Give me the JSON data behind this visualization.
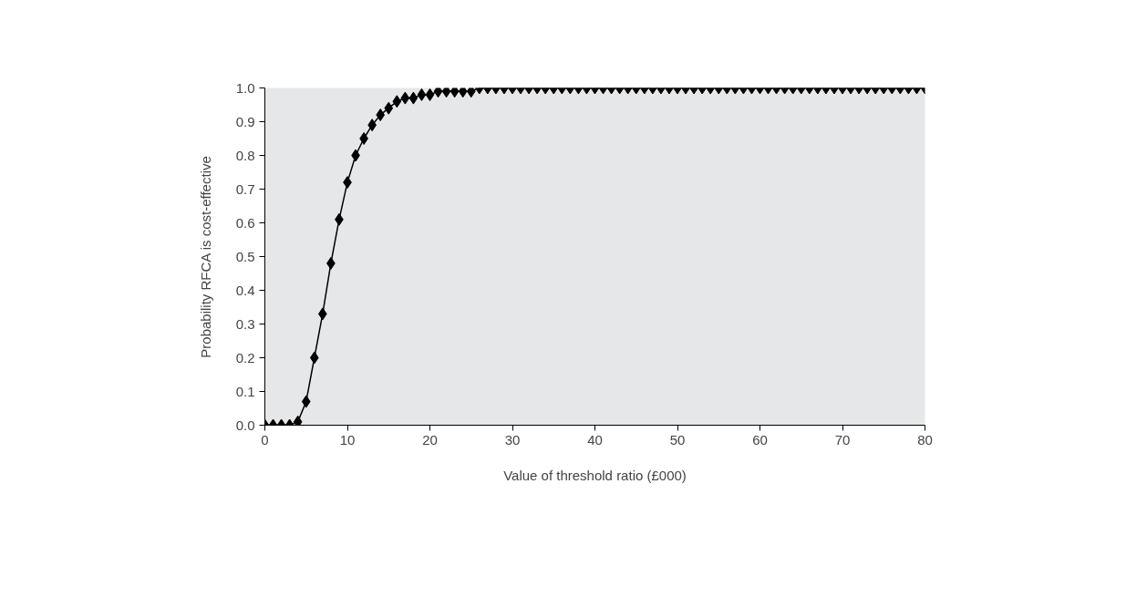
{
  "chart_data": {
    "type": "line",
    "xlabel": "Value of threshold ratio (£000)",
    "ylabel": "Probability RFCA is cost-effective",
    "x": [
      0,
      1,
      2,
      3,
      4,
      5,
      6,
      7,
      8,
      9,
      10,
      11,
      12,
      13,
      14,
      15,
      16,
      17,
      18,
      19,
      20,
      21,
      22,
      23,
      24,
      25,
      26,
      27,
      28,
      29,
      30,
      31,
      32,
      33,
      34,
      35,
      36,
      37,
      38,
      39,
      40,
      41,
      42,
      43,
      44,
      45,
      46,
      47,
      48,
      49,
      50,
      51,
      52,
      53,
      54,
      55,
      56,
      57,
      58,
      59,
      60,
      61,
      62,
      63,
      64,
      65,
      66,
      67,
      68,
      69,
      70,
      71,
      72,
      73,
      74,
      75,
      76,
      77,
      78,
      79,
      80
    ],
    "series": [
      {
        "color": "#000000",
        "values": [
          0,
          0,
          0,
          0,
          0.01,
          0.07,
          0.2,
          0.33,
          0.48,
          0.61,
          0.72,
          0.8,
          0.85,
          0.89,
          0.92,
          0.94,
          0.96,
          0.97,
          0.97,
          0.98,
          0.98,
          0.99,
          0.99,
          0.99,
          0.99,
          0.99,
          1,
          1,
          1,
          1,
          1,
          1,
          1,
          1,
          1,
          1,
          1,
          1,
          1,
          1,
          1,
          1,
          1,
          1,
          1,
          1,
          1,
          1,
          1,
          1,
          1,
          1,
          1,
          1,
          1,
          1,
          1,
          1,
          1,
          1,
          1,
          1,
          1,
          1,
          1,
          1,
          1,
          1,
          1,
          1,
          1,
          1,
          1,
          1,
          1,
          1,
          1,
          1,
          1,
          1,
          1
        ]
      }
    ],
    "xlim": [
      0,
      80
    ],
    "ylim": [
      0,
      1
    ],
    "xticks": [
      0,
      10,
      20,
      30,
      40,
      50,
      60,
      70,
      80
    ],
    "yticks": [
      {
        "value": 0,
        "label": "0.0"
      },
      {
        "value": 0.1,
        "label": "0.1"
      },
      {
        "value": 0.2,
        "label": "0.2"
      },
      {
        "value": 0.3,
        "label": "0.3"
      },
      {
        "value": 0.4,
        "label": "0.4"
      },
      {
        "value": 0.5,
        "label": "0.5"
      },
      {
        "value": 0.6,
        "label": "0.6"
      },
      {
        "value": 0.7,
        "label": "0.7"
      },
      {
        "value": 0.8,
        "label": "0.8"
      },
      {
        "value": 0.9,
        "label": "0.9"
      },
      {
        "value": 1,
        "label": "1.0"
      }
    ],
    "marker": "diamond",
    "line_style": "solid"
  }
}
